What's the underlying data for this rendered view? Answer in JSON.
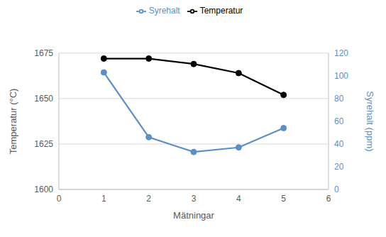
{
  "chart_data": {
    "type": "line",
    "x_label": "Mätningar",
    "y_label": "Temperatur (°C)",
    "y2_label": "Syrehalt (ppm)",
    "x": [
      1,
      2,
      3,
      4,
      5
    ],
    "xlim": [
      0,
      6
    ],
    "xticks": [
      0,
      1,
      2,
      3,
      4,
      5,
      6
    ],
    "ylim": [
      1600,
      1675
    ],
    "yticks": [
      1600,
      1625,
      1650,
      1675
    ],
    "y2lim": [
      0,
      120
    ],
    "y2ticks": [
      0,
      20,
      40,
      60,
      80,
      100,
      120
    ],
    "grid": true,
    "legend": "top",
    "series": [
      {
        "name": "Temperatur",
        "color": "#000000",
        "marker": "circle",
        "values": [
          1672,
          1672,
          1669,
          1664,
          1652
        ]
      },
      {
        "name": "Syrehalt",
        "color": "#5b8fc7",
        "marker": "circle",
        "axis": "y2",
        "values": [
          103,
          46,
          33,
          37,
          54
        ]
      }
    ]
  }
}
